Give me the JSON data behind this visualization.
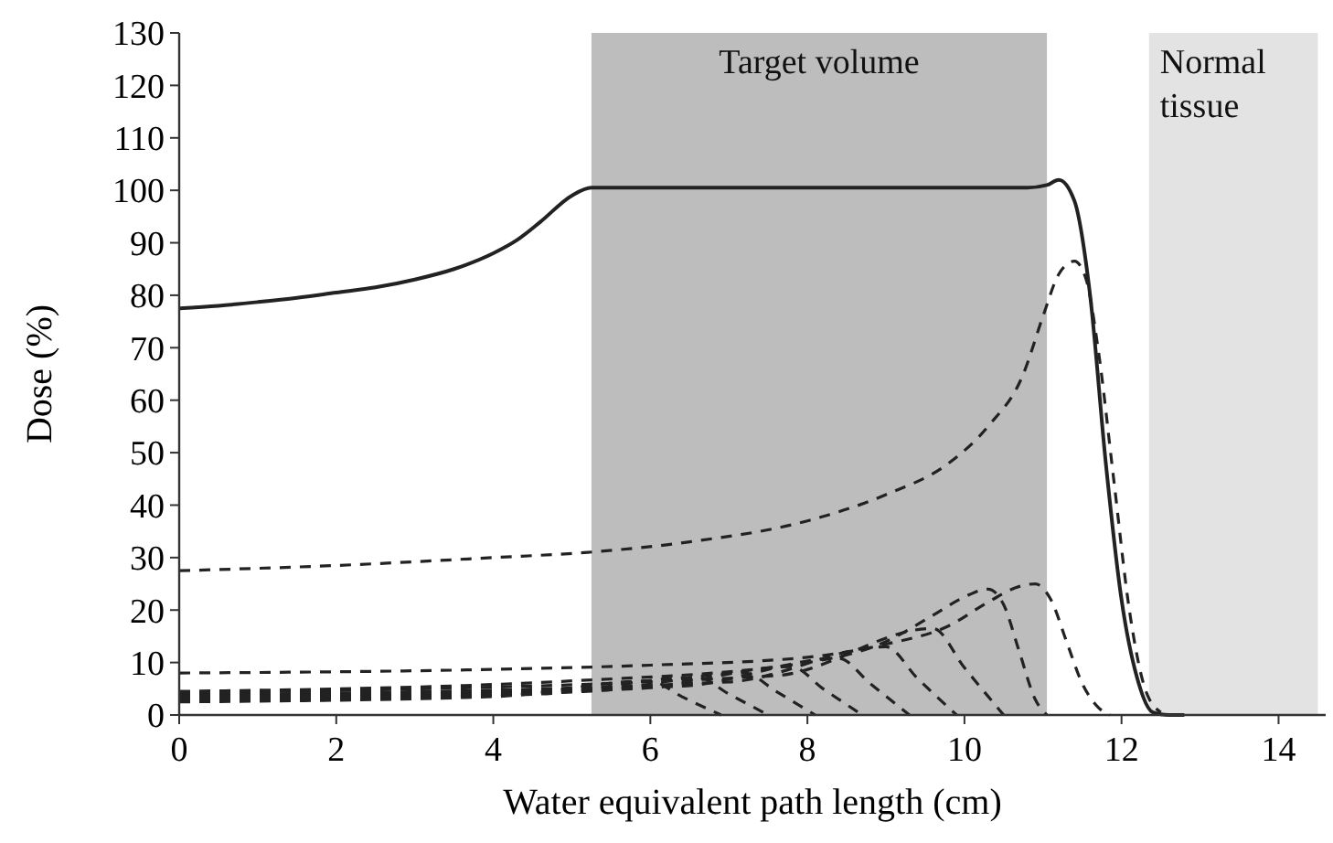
{
  "chart_data": {
    "type": "line",
    "xlabel": "Water equivalent path length (cm)",
    "ylabel": "Dose (%)",
    "xlim": [
      0,
      14.6
    ],
    "ylim": [
      0,
      130
    ],
    "xticks": [
      0,
      2,
      4,
      6,
      8,
      10,
      12,
      14
    ],
    "yticks": [
      0,
      10,
      20,
      30,
      40,
      50,
      60,
      70,
      80,
      90,
      100,
      110,
      120,
      130
    ],
    "bands": [
      {
        "axis": "x",
        "from": 5.25,
        "to": 11.05,
        "label": "Target volume",
        "color": "#bdbdbd"
      },
      {
        "axis": "x",
        "from": 12.35,
        "to": 14.5,
        "label": "Normal tissue",
        "color": "#e3e3e3"
      }
    ],
    "series": [
      {
        "color": "#222222",
        "line_style": "solid",
        "x": [
          0,
          0.5,
          1,
          1.5,
          2,
          2.5,
          3,
          3.5,
          4,
          4.3,
          4.6,
          5,
          5.25,
          6,
          7,
          8,
          9,
          10,
          10.8,
          11.05,
          11.2,
          11.4,
          11.6,
          11.8,
          12,
          12.2,
          12.4,
          12.6,
          12.8
        ],
        "values": [
          77.5,
          78,
          78.7,
          79.5,
          80.5,
          81.5,
          83,
          85,
          88,
          90.5,
          94,
          99,
          100.5,
          100.5,
          100.5,
          100.5,
          100.5,
          100.5,
          100.5,
          101,
          102,
          98,
          80,
          48,
          22,
          7,
          0.5,
          0,
          0
        ]
      },
      {
        "color": "#222222",
        "line_style": "dashed",
        "x": [
          0,
          2,
          4,
          5.2,
          6.5,
          8,
          9,
          9.8,
          10.3,
          10.75,
          11,
          11.2,
          11.4,
          11.55,
          11.7,
          11.9,
          12.1,
          12.3,
          12.5
        ],
        "values": [
          27.5,
          28.5,
          30,
          31,
          33,
          37,
          42,
          48,
          55,
          65,
          76,
          84,
          86.5,
          83,
          70,
          45,
          20,
          5,
          0.5
        ]
      },
      {
        "color": "#222222",
        "line_style": "dashed",
        "x": [
          0,
          4,
          6,
          8,
          9,
          9.8,
          10.3,
          10.7,
          10.9,
          11.1,
          11.3,
          11.5,
          11.7,
          11.85
        ],
        "values": [
          8,
          8.7,
          9.5,
          11,
          13.5,
          17,
          21.5,
          24.5,
          25,
          22,
          14,
          6,
          1.5,
          0
        ]
      },
      {
        "color": "#222222",
        "line_style": "dashed",
        "x": [
          0,
          5,
          8,
          9,
          9.6,
          10,
          10.3,
          10.5,
          10.7,
          10.9,
          11.05
        ],
        "values": [
          4.5,
          6.5,
          10,
          14,
          19,
          22.5,
          24,
          21,
          12,
          3,
          0
        ]
      },
      {
        "color": "#222222",
        "line_style": "dashed",
        "x": [
          0,
          7.6,
          9.6,
          10,
          10.5
        ],
        "values": [
          4.2,
          7.5,
          16.5,
          9,
          0
        ]
      },
      {
        "color": "#222222",
        "line_style": "dashed",
        "x": [
          0,
          7,
          9,
          9.4,
          9.9
        ],
        "values": [
          3.8,
          6.3,
          13,
          7,
          0
        ]
      },
      {
        "color": "#222222",
        "line_style": "dashed",
        "x": [
          0,
          6.4,
          8.4,
          8.8,
          9.3
        ],
        "values": [
          3.5,
          5.5,
          10.8,
          6,
          0
        ]
      },
      {
        "color": "#222222",
        "line_style": "dashed",
        "x": [
          0,
          5.8,
          7.8,
          8.2,
          8.7
        ],
        "values": [
          3.2,
          5,
          9.2,
          5,
          0
        ]
      },
      {
        "color": "#222222",
        "line_style": "dashed",
        "x": [
          0,
          5.2,
          7.2,
          7.6,
          8.1
        ],
        "values": [
          3,
          4.5,
          8,
          4.5,
          0
        ]
      },
      {
        "color": "#222222",
        "line_style": "dashed",
        "x": [
          0,
          4.6,
          6.6,
          7,
          7.5
        ],
        "values": [
          2.7,
          4,
          7.2,
          4,
          0
        ]
      },
      {
        "color": "#222222",
        "line_style": "dashed",
        "x": [
          0,
          4,
          6,
          6.4,
          6.9
        ],
        "values": [
          2.5,
          3.5,
          6.5,
          3.5,
          0
        ]
      }
    ]
  }
}
